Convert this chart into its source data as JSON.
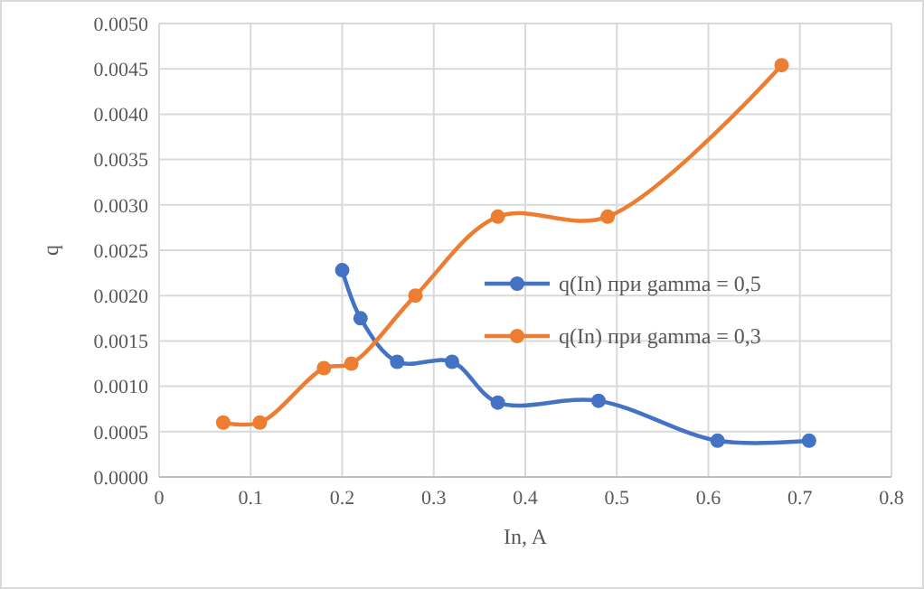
{
  "chart_data": {
    "type": "line",
    "xlabel": "In, A",
    "ylabel": "q",
    "xlim": [
      0,
      0.8
    ],
    "xticks": [
      0,
      0.1,
      0.2,
      0.3,
      0.4,
      0.5,
      0.6,
      0.7,
      0.8
    ],
    "ylim": [
      0,
      0.005
    ],
    "yticks": [
      {
        "value": 0,
        "label": "0.0000"
      },
      {
        "value": 0.0005,
        "label": "0.0005"
      },
      {
        "value": 0.001,
        "label": "0.0010"
      },
      {
        "value": 0.0015,
        "label": "0.0015"
      },
      {
        "value": 0.002,
        "label": "0.0020"
      },
      {
        "value": 0.0025,
        "label": "0.0025"
      },
      {
        "value": 0.003,
        "label": "0.0030"
      },
      {
        "value": 0.0035,
        "label": "0.0035"
      },
      {
        "value": 0.004,
        "label": "0.0040"
      },
      {
        "value": 0.0045,
        "label": "0.0045"
      },
      {
        "value": 0.005,
        "label": "0.0050"
      }
    ],
    "grid": true,
    "legend": "right",
    "marker": "circle",
    "line_style": "solid",
    "series": [
      {
        "name": "q(In) при gamma = 0,5",
        "color": "#4472c4",
        "x": [
          0.2,
          0.22,
          0.26,
          0.32,
          0.37,
          0.48,
          0.61,
          0.71
        ],
        "values": [
          0.00228,
          0.00175,
          0.00127,
          0.00127,
          0.00082,
          0.00084,
          0.0004,
          0.0004
        ]
      },
      {
        "name": "q(In) при gamma = 0,3",
        "color": "#ed7d31",
        "x": [
          0.07,
          0.11,
          0.18,
          0.21,
          0.28,
          0.37,
          0.49,
          0.68
        ],
        "values": [
          0.0006,
          0.0006,
          0.0012,
          0.00125,
          0.002,
          0.00287,
          0.00287,
          0.00454
        ]
      }
    ]
  }
}
